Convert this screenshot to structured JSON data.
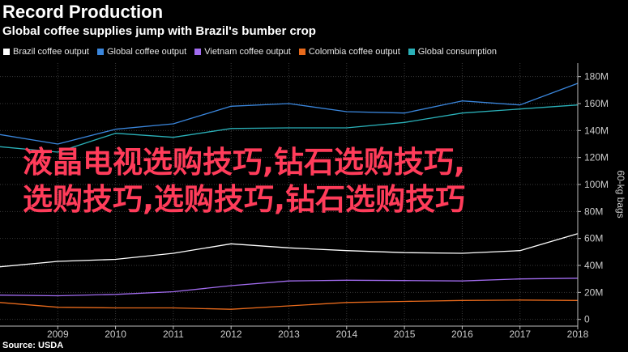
{
  "header": {
    "title": "Record Production",
    "subtitle": "Global coffee supplies jump with Brazil's bumber crop"
  },
  "source": "Source: USDA",
  "overlay_text": {
    "line1": "液晶电视选购技巧,钻石选购技巧,",
    "line2": "选购技巧,选购技巧,钻石选购技巧"
  },
  "chart_data": {
    "type": "line",
    "title": "Record Production",
    "subtitle": "Global coffee supplies jump with Brazil's bumber crop",
    "x": [
      2008,
      2009,
      2010,
      2011,
      2012,
      2013,
      2014,
      2015,
      2016,
      2017,
      2018
    ],
    "x_tick_labels": [
      "2009",
      "2010",
      "2011",
      "2012",
      "2013",
      "2014",
      "2015",
      "2016",
      "2017",
      "2018"
    ],
    "xlim": [
      2008,
      2018
    ],
    "ylabel": "60-kg bags",
    "ylim": [
      -5,
      190
    ],
    "y_ticks": [
      0,
      20,
      40,
      60,
      80,
      100,
      120,
      140,
      160,
      180
    ],
    "y_tick_labels": [
      "0",
      "20M",
      "40M",
      "60M",
      "80M",
      "100M",
      "120M",
      "140M",
      "160M",
      "180M"
    ],
    "y_axis_side": "right",
    "grid": true,
    "legend_position": "top-left",
    "series": [
      {
        "name": "Brazil coffee output",
        "color": "#ffffff",
        "values": [
          39,
          43,
          44.5,
          49,
          56,
          53,
          51,
          49.5,
          49,
          51,
          63.5
        ]
      },
      {
        "name": "Global coffee output",
        "color": "#3a86dc",
        "values": [
          137,
          130,
          141,
          145,
          158,
          160,
          154,
          153,
          162,
          159,
          175
        ]
      },
      {
        "name": "Vietnam coffee output",
        "color": "#a26cf0",
        "values": [
          18,
          17.5,
          18.5,
          20.5,
          25,
          28.5,
          29,
          28.8,
          28.5,
          30,
          30.5
        ]
      },
      {
        "name": "Colombia coffee output",
        "color": "#e86a1c",
        "values": [
          12.5,
          9,
          8.5,
          8.5,
          7.5,
          10,
          12.5,
          13.3,
          14,
          14.3,
          14
        ]
      },
      {
        "name": "Global consumption",
        "color": "#2ab0b8",
        "values": [
          128,
          124,
          138,
          135,
          141.5,
          142,
          142,
          146,
          153,
          156,
          159
        ]
      }
    ]
  }
}
